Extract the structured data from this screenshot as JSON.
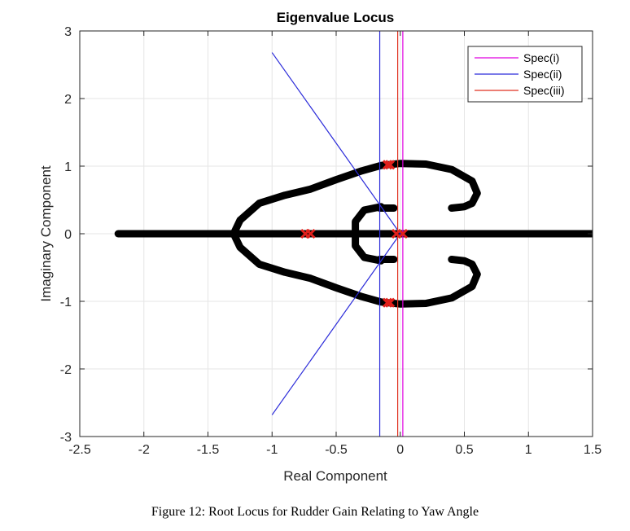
{
  "chart_data": {
    "type": "scatter",
    "title": "Eigenvalue Locus",
    "xlabel": "Real Component",
    "ylabel": "Imaginary Component",
    "xlim": [
      -2.5,
      1.5
    ],
    "ylim": [
      -3,
      3
    ],
    "xticks": [
      -2.5,
      -2,
      -1.5,
      -1,
      -0.5,
      0,
      0.5,
      1,
      1.5
    ],
    "xtick_labels": [
      "-2.5",
      "-2",
      "-1.5",
      "-1",
      "-0.5",
      "0",
      "0.5",
      "1",
      "1.5"
    ],
    "yticks": [
      -3,
      -2,
      -1,
      0,
      1,
      2,
      3
    ],
    "ytick_labels": [
      "-3",
      "-2",
      "-1",
      "0",
      "1",
      "2",
      "3"
    ],
    "grid": true,
    "legend_position": "top-right",
    "colors": {
      "locus": "#000000",
      "start_marker": "#e0201b",
      "spec_i": "#e000e0",
      "spec_ii": "#2b2bd9",
      "spec_iii": "#e03020"
    },
    "series": [
      {
        "name": "Spec(i)",
        "color": "#e000e0",
        "lines": [
          {
            "x": [
              0.02,
              0.02
            ],
            "y": [
              -3,
              3
            ]
          }
        ]
      },
      {
        "name": "Spec(ii)",
        "color": "#2b2bd9",
        "lines": [
          {
            "x": [
              -0.16,
              -0.16
            ],
            "y": [
              -3,
              3
            ]
          },
          {
            "x": [
              -1.0,
              0.0
            ],
            "y": [
              2.68,
              0.0
            ]
          },
          {
            "x": [
              -1.0,
              0.0
            ],
            "y": [
              -2.68,
              0.0
            ]
          }
        ]
      },
      {
        "name": "Spec(iii)",
        "color": "#e03020",
        "lines": [
          {
            "x": [
              -0.02,
              -0.02
            ],
            "y": [
              -3,
              3
            ]
          }
        ]
      }
    ],
    "locus_branches": [
      {
        "x": [
          -2.2,
          1.5
        ],
        "y": [
          0,
          0
        ]
      },
      {
        "x": [
          -1.3,
          -1.25,
          -1.1,
          -0.9,
          -0.7,
          -0.5,
          -0.3,
          -0.15,
          0.0,
          0.2,
          0.4,
          0.56,
          0.6,
          0.56,
          0.5,
          0.4
        ],
        "y": [
          0.0,
          0.2,
          0.45,
          0.57,
          0.66,
          0.8,
          0.93,
          1.01,
          1.04,
          1.03,
          0.95,
          0.78,
          0.6,
          0.45,
          0.4,
          0.38
        ]
      },
      {
        "x": [
          -1.3,
          -1.25,
          -1.1,
          -0.9,
          -0.7,
          -0.5,
          -0.3,
          -0.15,
          0.0,
          0.2,
          0.4,
          0.56,
          0.6,
          0.56,
          0.5,
          0.4
        ],
        "y": [
          0.0,
          -0.2,
          -0.45,
          -0.57,
          -0.66,
          -0.8,
          -0.93,
          -1.01,
          -1.04,
          -1.03,
          -0.95,
          -0.78,
          -0.6,
          -0.45,
          -0.4,
          -0.38
        ]
      },
      {
        "x": [
          -0.15,
          -0.28,
          -0.35,
          -0.35,
          -0.35,
          -0.28,
          -0.15
        ],
        "y": [
          0.4,
          0.35,
          0.18,
          0.0,
          -0.18,
          -0.35,
          -0.4
        ]
      },
      {
        "x": [
          -0.16,
          -0.05
        ],
        "y": [
          0.38,
          0.38
        ]
      },
      {
        "x": [
          -0.16,
          -0.05
        ],
        "y": [
          -0.38,
          -0.38
        ]
      }
    ],
    "start_points": {
      "x": [
        -0.08,
        -0.1,
        -0.08,
        -0.1,
        -0.7,
        -0.74,
        -0.03,
        0.02
      ],
      "y": [
        1.02,
        1.02,
        -1.02,
        -1.02,
        0.0,
        0.0,
        0.0,
        0.0
      ]
    }
  },
  "caption": "Figure 12: Root Locus for Rudder Gain Relating to Yaw Angle"
}
